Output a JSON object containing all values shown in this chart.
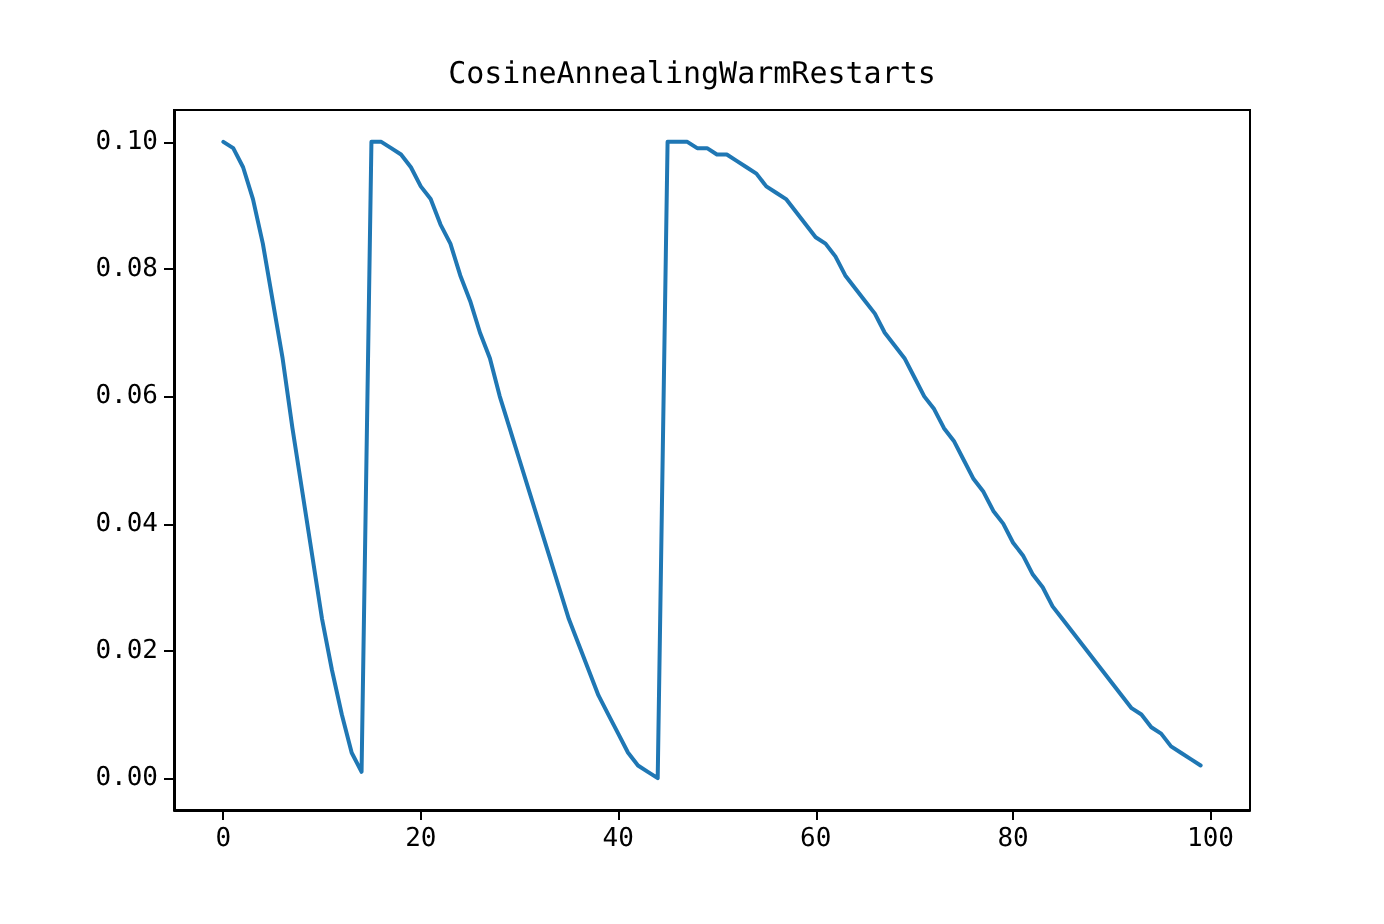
{
  "chart_data": {
    "type": "line",
    "title": "CosineAnnealingWarmRestarts",
    "x": [
      0,
      1,
      2,
      3,
      4,
      5,
      6,
      7,
      8,
      9,
      10,
      11,
      12,
      13,
      14,
      15,
      16,
      17,
      18,
      19,
      20,
      21,
      22,
      23,
      24,
      25,
      26,
      27,
      28,
      29,
      30,
      31,
      32,
      33,
      34,
      35,
      36,
      37,
      38,
      39,
      40,
      41,
      42,
      43,
      44,
      45,
      46,
      47,
      48,
      49,
      50,
      51,
      52,
      53,
      54,
      55,
      56,
      57,
      58,
      59,
      60,
      61,
      62,
      63,
      64,
      65,
      66,
      67,
      68,
      69,
      70,
      71,
      72,
      73,
      74,
      75,
      76,
      77,
      78,
      79,
      80,
      81,
      82,
      83,
      84,
      85,
      86,
      87,
      88,
      89,
      90,
      91,
      92,
      93,
      94,
      95,
      96,
      97,
      98,
      99
    ],
    "series": [
      {
        "color": "#1f77b4",
        "values": [
          0.1,
          0.099,
          0.096,
          0.091,
          0.084,
          0.075,
          0.066,
          0.055,
          0.045,
          0.035,
          0.025,
          0.017,
          0.01,
          0.004,
          0.001,
          0.1,
          0.1,
          0.099,
          0.098,
          0.096,
          0.093,
          0.091,
          0.087,
          0.084,
          0.079,
          0.075,
          0.07,
          0.066,
          0.06,
          0.055,
          0.05,
          0.045,
          0.04,
          0.035,
          0.03,
          0.025,
          0.021,
          0.017,
          0.013,
          0.01,
          0.007,
          0.004,
          0.002,
          0.001,
          0,
          0.1,
          0.1,
          0.1,
          0.099,
          0.099,
          0.098,
          0.098,
          0.097,
          0.096,
          0.095,
          0.093,
          0.092,
          0.091,
          0.089,
          0.087,
          0.085,
          0.084,
          0.082,
          0.079,
          0.077,
          0.075,
          0.073,
          0.07,
          0.068,
          0.066,
          0.063,
          0.06,
          0.058,
          0.055,
          0.053,
          0.05,
          0.047,
          0.045,
          0.042,
          0.04,
          0.037,
          0.035,
          0.032,
          0.03,
          0.027,
          0.025,
          0.023,
          0.021,
          0.019,
          0.017,
          0.015,
          0.013,
          0.011,
          0.01,
          0.008,
          0.007,
          0.005,
          0.004,
          0.003,
          0.002
        ]
      }
    ],
    "xlim": [
      -5,
      104
    ],
    "xticks": [
      0,
      20,
      40,
      60,
      80,
      100
    ],
    "ylim": [
      -0.005,
      0.105
    ],
    "yticks": [
      {
        "value": 0,
        "label": "0.00"
      },
      {
        "value": 0.02,
        "label": "0.02"
      },
      {
        "value": 0.04,
        "label": "0.04"
      },
      {
        "value": 0.06,
        "label": "0.06"
      },
      {
        "value": 0.08,
        "label": "0.08"
      },
      {
        "value": 0.1,
        "label": "0.10"
      }
    ],
    "grid": false,
    "marker": "none",
    "line_style": "solid"
  }
}
